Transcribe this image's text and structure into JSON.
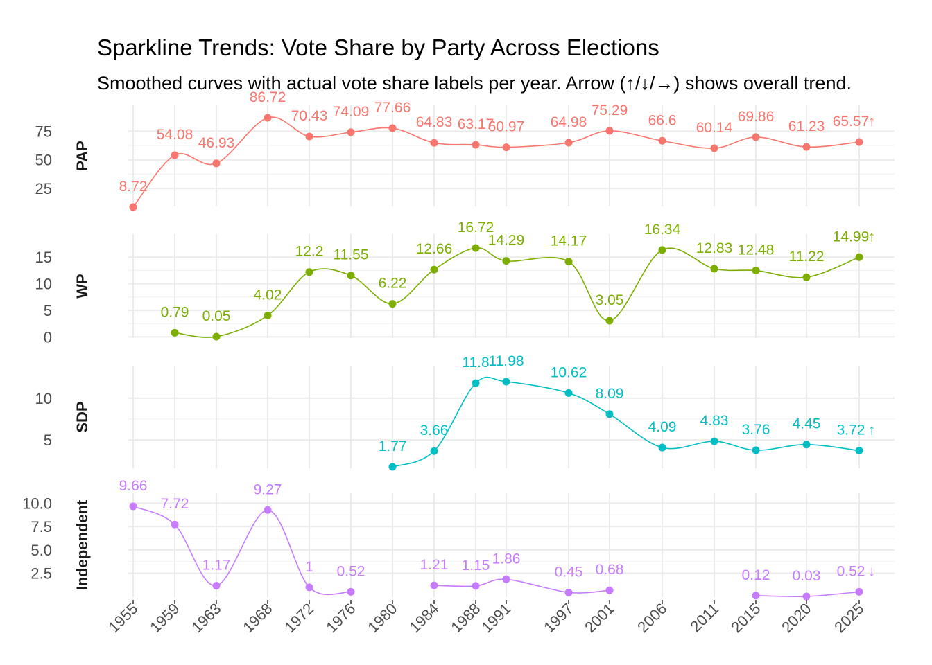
{
  "chart_data": {
    "type": "line",
    "title": "Sparkline Trends: Vote Share by Party Across Elections",
    "subtitle": "Smoothed curves with actual vote share labels per year. Arrow (↑/↓/→) shows overall trend.",
    "x": [
      "1955",
      "1959",
      "1963",
      "1968",
      "1972",
      "1976",
      "1980",
      "1984",
      "1988",
      "1991",
      "1997",
      "2001",
      "2006",
      "2011",
      "2015",
      "2020",
      "2025"
    ],
    "grid": true,
    "facets": [
      {
        "name": "PAP",
        "color": "#F8766D",
        "ylim": [
          8.72,
          86.72
        ],
        "yticks": [
          25,
          50,
          75
        ],
        "values": [
          8.72,
          54.08,
          46.93,
          86.72,
          70.43,
          74.09,
          77.66,
          64.83,
          63.17,
          60.97,
          64.98,
          75.29,
          66.6,
          60.14,
          69.86,
          61.23,
          65.57
        ],
        "trend": "↑"
      },
      {
        "name": "WP",
        "color": "#7CAE00",
        "ylim": [
          0.05,
          16.72
        ],
        "yticks": [
          0,
          5,
          10,
          15
        ],
        "values": [
          null,
          0.79,
          0.05,
          4.02,
          12.2,
          11.55,
          6.22,
          12.66,
          16.72,
          14.29,
          14.17,
          3.05,
          16.34,
          12.83,
          12.48,
          11.22,
          14.99
        ],
        "trend": "↑"
      },
      {
        "name": "SDP",
        "color": "#00BFC4",
        "ylim": [
          1.77,
          11.98
        ],
        "yticks": [
          5,
          10
        ],
        "values": [
          null,
          null,
          null,
          null,
          null,
          null,
          1.77,
          3.66,
          11.8,
          11.98,
          10.62,
          8.09,
          4.09,
          4.83,
          3.76,
          4.45,
          3.72
        ],
        "trend": "↑"
      },
      {
        "name": "Independent",
        "color": "#C77CFF",
        "ylim": [
          0.03,
          9.66
        ],
        "yticks": [
          2.5,
          5.0,
          7.5,
          10.0
        ],
        "values": [
          9.66,
          7.72,
          1.17,
          9.27,
          1,
          0.52,
          null,
          1.21,
          1.15,
          1.86,
          0.45,
          0.68,
          null,
          null,
          0.12,
          0.03,
          0.52
        ],
        "trend": "↓"
      }
    ]
  }
}
